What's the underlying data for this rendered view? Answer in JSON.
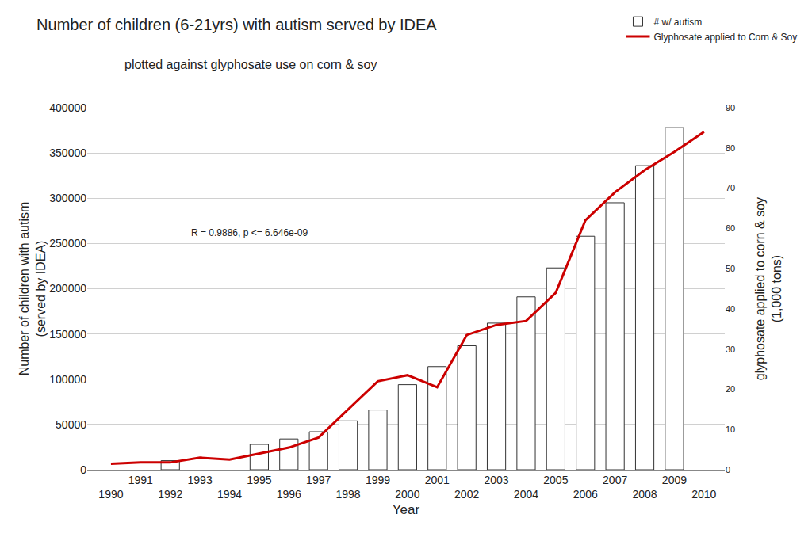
{
  "chart_data": {
    "type": "bar",
    "title": "Number of children (6-21yrs) with autism served by IDEA",
    "subtitle": "plotted against glyphosate use on corn & soy",
    "x_label": "Year",
    "y_label": "Number of children with autism\n(served by IDEA)",
    "y2_label": "glyphosate applied to corn & soy\n(1,000 tons)",
    "annotations": [
      "R = 0.9886, p <= 6.646e-09"
    ],
    "x": [
      1990,
      1991,
      1992,
      1993,
      1994,
      1995,
      1996,
      1997,
      1998,
      1999,
      2000,
      2001,
      2002,
      2003,
      2004,
      2005,
      2006,
      2007,
      2008,
      2009,
      2010
    ],
    "series": [
      {
        "name": "# w/ autism",
        "type": "bar",
        "color": "#ffffff",
        "values": [
          null,
          null,
          10000,
          null,
          null,
          28000,
          34000,
          42000,
          54000,
          66000,
          94000,
          114000,
          137000,
          162000,
          191000,
          223000,
          258000,
          295000,
          336000,
          378000,
          null
        ]
      },
      {
        "name": "Glyphosate applied to Corn & Soy",
        "type": "line",
        "color": "#cc0000",
        "axis": "y2",
        "values": [
          1.5,
          1.8,
          1.8,
          3,
          2.5,
          4,
          5.5,
          8,
          15,
          22,
          23.5,
          20.5,
          33.5,
          36,
          37,
          44,
          62,
          69,
          74.5,
          79,
          84
        ]
      }
    ],
    "xlim": [
      1989.2,
      2010.7
    ],
    "xticks": [
      1990,
      1991,
      1992,
      1993,
      1994,
      1995,
      1996,
      1997,
      1998,
      1999,
      2000,
      2001,
      2002,
      2003,
      2004,
      2005,
      2006,
      2007,
      2008,
      2009,
      2010
    ],
    "ylim": [
      0,
      400000
    ],
    "yticks": [
      0,
      50000,
      100000,
      150000,
      200000,
      250000,
      300000,
      350000,
      400000
    ],
    "y2lim": [
      0,
      90
    ],
    "y2ticks": [
      0,
      10,
      20,
      30,
      40,
      50,
      60,
      70,
      80,
      90
    ],
    "grid": true,
    "legend": "top right"
  }
}
